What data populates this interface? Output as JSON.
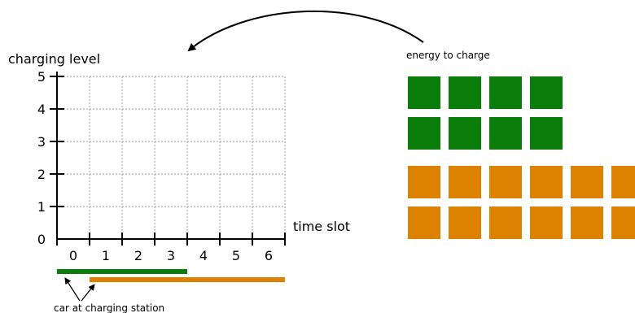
{
  "labels": {
    "ylabel": "charging level",
    "xlabel": "time slot",
    "energy": "energy to charge",
    "car_annotation": "car at charging station"
  },
  "axes": {
    "x_ticks": [
      "0",
      "1",
      "2",
      "3",
      "4",
      "5",
      "6"
    ],
    "y_ticks": [
      "0",
      "1",
      "2",
      "3",
      "4",
      "5"
    ],
    "x_slots": 7,
    "y_levels": 5,
    "grid": "dotted"
  },
  "cars": [
    {
      "color": "#0b7d0b",
      "start_slot": 0,
      "end_slot": 4
    },
    {
      "color": "#dd8200",
      "start_slot": 1,
      "end_slot": 7
    }
  ],
  "energy_blocks": [
    {
      "color": "#0b7d0b",
      "rows": 2,
      "cols": 4
    },
    {
      "color": "#dd8200",
      "rows": 2,
      "cols": 6
    }
  ],
  "colors": {
    "green": "#0b7d0b",
    "orange": "#dd8200",
    "axis": "#000000",
    "grid": "#9a9a9a"
  }
}
